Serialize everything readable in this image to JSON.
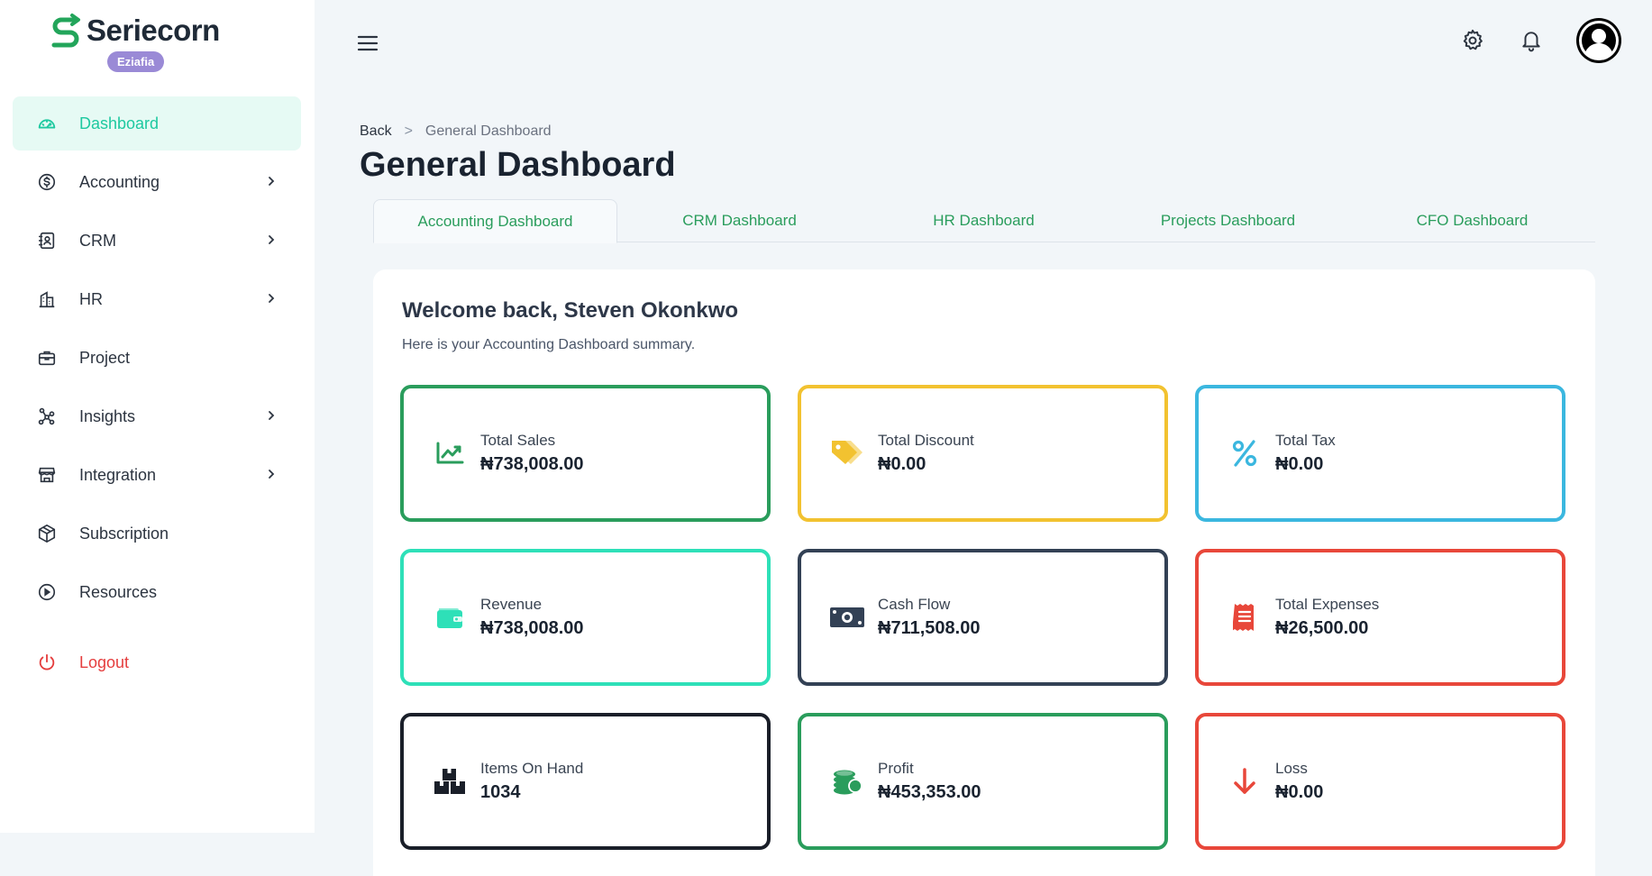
{
  "brand": {
    "name": "Seriecorn",
    "badge": "Eziafia",
    "color": "#22a55a"
  },
  "sidebar": {
    "items": [
      {
        "label": "Dashboard",
        "icon": "gauge-icon",
        "active": true,
        "chevron": false
      },
      {
        "label": "Accounting",
        "icon": "dollar-circle-icon",
        "chevron": true
      },
      {
        "label": "CRM",
        "icon": "contacts-icon",
        "chevron": true
      },
      {
        "label": "HR",
        "icon": "building-icon",
        "chevron": true
      },
      {
        "label": "Project",
        "icon": "briefcase-icon",
        "chevron": false
      },
      {
        "label": "Insights",
        "icon": "network-icon",
        "chevron": true
      },
      {
        "label": "Integration",
        "icon": "store-icon",
        "chevron": true
      },
      {
        "label": "Subscription",
        "icon": "package-icon",
        "chevron": false
      },
      {
        "label": "Resources",
        "icon": "play-circle-icon",
        "chevron": false
      }
    ],
    "logout": "Logout"
  },
  "breadcrumb": {
    "back": "Back",
    "separator": ">",
    "current": "General Dashboard"
  },
  "page": {
    "title": "General Dashboard"
  },
  "tabs": [
    {
      "label": "Accounting Dashboard",
      "active": true
    },
    {
      "label": "CRM Dashboard"
    },
    {
      "label": "HR Dashboard"
    },
    {
      "label": "Projects Dashboard"
    },
    {
      "label": "CFO Dashboard"
    }
  ],
  "welcome": {
    "title": "Welcome back, Steven Okonkwo",
    "subtitle": "Here is your Accounting Dashboard summary."
  },
  "stats": [
    {
      "label": "Total Sales",
      "value": "₦738,008.00",
      "color": "#2a9d5c",
      "icon": "trend-chart-icon"
    },
    {
      "label": "Total Discount",
      "value": "₦0.00",
      "color": "#f2c230",
      "icon": "tag-icon"
    },
    {
      "label": "Total Tax",
      "value": "₦0.00",
      "color": "#3bb7df",
      "icon": "percent-icon"
    },
    {
      "label": "Revenue",
      "value": "₦738,008.00",
      "color": "#2ee0b8",
      "icon": "wallet-icon"
    },
    {
      "label": "Cash Flow",
      "value": "₦711,508.00",
      "color": "#334155",
      "icon": "banknote-icon"
    },
    {
      "label": "Total Expenses",
      "value": "₦26,500.00",
      "color": "#e8473a",
      "icon": "receipt-icon"
    },
    {
      "label": "Items On Hand",
      "value": "1034",
      "color": "#1a1f29",
      "icon": "boxes-icon"
    },
    {
      "label": "Profit",
      "value": "₦453,353.00",
      "color": "#2a9d5c",
      "icon": "coins-icon"
    },
    {
      "label": "Loss",
      "value": "₦0.00",
      "color": "#e8473a",
      "icon": "arrow-down-icon"
    }
  ]
}
